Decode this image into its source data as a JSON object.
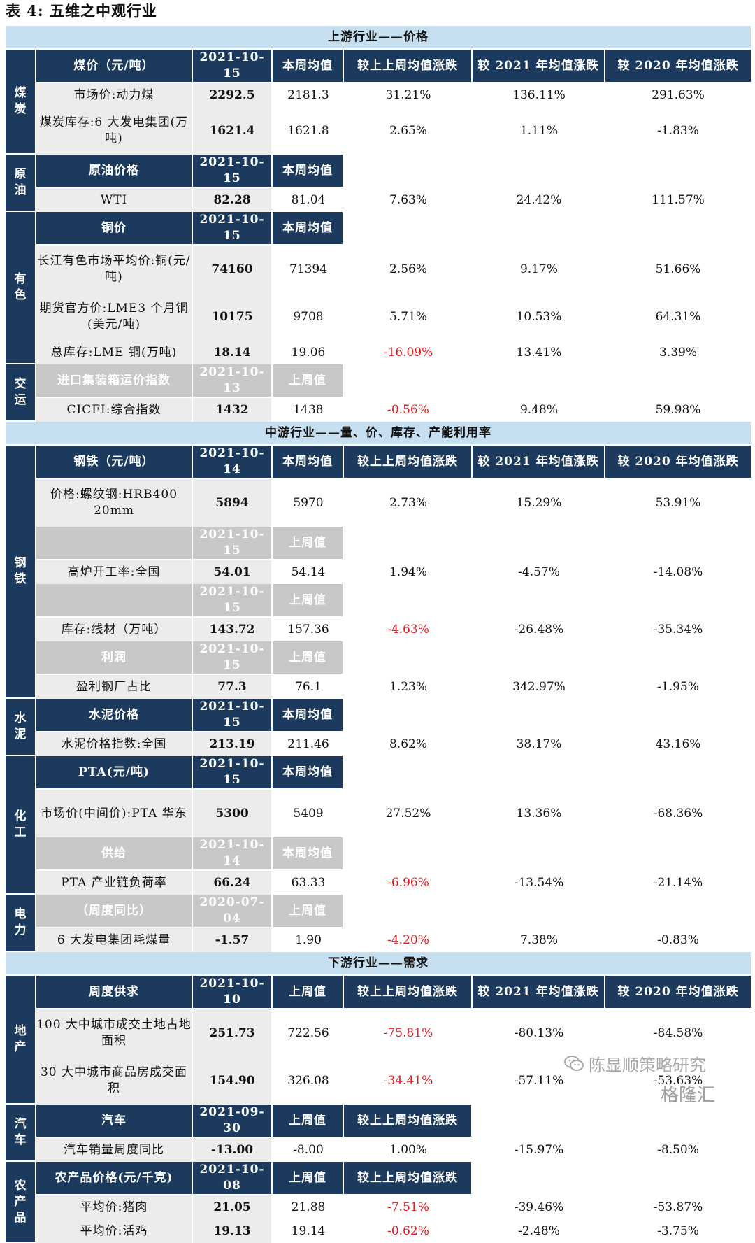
{
  "title": "表 4:  五维之中观行业",
  "upstream": {
    "header": "上游行业——价格",
    "coal": {
      "category": "煤炭",
      "headers": [
        "煤价（元/吨）",
        "2021-10-15",
        "本周均值",
        "较上上周均值涨跌",
        "较 2021 年均值涨跌",
        "较 2020 年均值涨跌"
      ],
      "rows": [
        {
          "label": "市场价:动力煤",
          "current": "2292.5",
          "avg": "2181.3",
          "wow": "31.21%",
          "vs2021": "136.11%",
          "vs2020": "291.63%"
        },
        {
          "label": "煤炭库存:6 大发电集团(万吨)",
          "current": "1621.4",
          "avg": "1621.8",
          "wow": "2.65%",
          "vs2021": "1.11%",
          "vs2020": "-1.83%"
        }
      ]
    },
    "oil": {
      "category": "原油",
      "headers": [
        "原油价格",
        "2021-10-15",
        "本周均值"
      ],
      "rows": [
        {
          "label": "WTI",
          "current": "82.28",
          "avg": "81.04",
          "wow": "7.63%",
          "vs2021": "24.42%",
          "vs2020": "111.57%"
        }
      ]
    },
    "nonferrous": {
      "category": "有色",
      "headers": [
        "铜价",
        "2021-10-15",
        "本周均值"
      ],
      "rows": [
        {
          "label": "长江有色市场平均价:铜(元/吨)",
          "current": "74160",
          "avg": "71394",
          "wow": "2.56%",
          "vs2021": "9.17%",
          "vs2020": "51.66%"
        },
        {
          "label": "期货官方价:LME3 个月铜(美元/吨)",
          "current": "10175",
          "avg": "9708",
          "wow": "5.71%",
          "vs2021": "10.53%",
          "vs2020": "64.31%"
        },
        {
          "label": "总库存:LME 铜(万吨)",
          "current": "18.14",
          "avg": "19.06",
          "wow": "-16.09%",
          "vs2021": "13.41%",
          "vs2020": "3.39%"
        }
      ]
    },
    "shipping": {
      "category": "交运",
      "headers": [
        "进口集装箱运价指数",
        "2021-10-13",
        "上周值"
      ],
      "rows": [
        {
          "label": "CICFI:综合指数",
          "current": "1432",
          "avg": "1438",
          "wow": "-0.56%",
          "vs2021": "9.48%",
          "vs2020": "59.98%"
        }
      ]
    }
  },
  "midstream": {
    "header": "中游行业——量、价、库存、产能利用率",
    "steel": {
      "category": "钢铁",
      "headers": [
        "钢铁（元/吨）",
        "2021-10-14",
        "本周均值",
        "较上上周均值涨跌",
        "较 2021 年均值涨跌",
        "较 2020 年均值涨跌"
      ],
      "price_row": {
        "label": "价格:螺纹钢:HRB400 20mm",
        "current": "5894",
        "avg": "5970",
        "wow": "2.73%",
        "vs2021": "15.29%",
        "vs2020": "53.91%"
      },
      "blast_headers": [
        "",
        "2021-10-15",
        "上周值"
      ],
      "blast_row": {
        "label": "高炉开工率:全国",
        "current": "54.01",
        "avg": "54.14",
        "wow": "1.94%",
        "vs2021": "-4.57%",
        "vs2020": "-14.08%"
      },
      "stock_headers": [
        "",
        "2021-10-15",
        "上周值"
      ],
      "stock_row": {
        "label": "库存:线材（万吨）",
        "current": "143.72",
        "avg": "157.36",
        "wow": "-4.63%",
        "vs2021": "-26.48%",
        "vs2020": "-35.34%"
      },
      "profit_headers": [
        "利润",
        "2021-10-15",
        "上周值"
      ],
      "profit_row": {
        "label": "盈利钢厂占比",
        "current": "77.3",
        "avg": "76.1",
        "wow": "1.23%",
        "vs2021": "342.97%",
        "vs2020": "-1.95%"
      }
    },
    "cement": {
      "category": "水泥",
      "headers": [
        "水泥价格",
        "2021-10-15",
        "本周均值"
      ],
      "rows": [
        {
          "label": "水泥价格指数:全国",
          "current": "213.19",
          "avg": "211.46",
          "wow": "8.62%",
          "vs2021": "38.17%",
          "vs2020": "43.16%"
        }
      ]
    },
    "chemical": {
      "category": "化工",
      "headers": [
        "PTA(元/吨)",
        "2021-10-15",
        "本周均值"
      ],
      "price_row": {
        "label": "市场价(中间价):PTA 华东",
        "current": "5300",
        "avg": "5409",
        "wow": "27.52%",
        "vs2021": "13.36%",
        "vs2020": "-68.36%"
      },
      "supply_headers": [
        "供给",
        "2021-10-14",
        "本周均值"
      ],
      "supply_row": {
        "label": "PTA 产业链负荷率",
        "current": "66.24",
        "avg": "63.33",
        "wow": "-6.96%",
        "vs2021": "-13.54%",
        "vs2020": "-21.14%"
      }
    },
    "power": {
      "category": "电力",
      "headers": [
        "（周度同比）",
        "2020-07-04",
        "上周值"
      ],
      "rows": [
        {
          "label": "6 大发电集团耗煤量",
          "current": "-1.57",
          "avg": "1.90",
          "wow": "-4.20%",
          "vs2021": "7.38%",
          "vs2020": "-0.83%"
        }
      ]
    }
  },
  "downstream": {
    "header": "下游行业——需求",
    "realestate": {
      "category": "地产",
      "headers": [
        "周度供求",
        "2021-10-10",
        "上周值",
        "较上上周均值涨跌",
        "较 2021 年均值涨跌",
        "较 2020 年均值涨跌"
      ],
      "rows": [
        {
          "label": "100 大中城市成交土地占地面积",
          "current": "251.73",
          "avg": "722.56",
          "wow": "-75.81%",
          "vs2021": "-80.13%",
          "vs2020": "-84.58%"
        },
        {
          "label": "30 大中城市商品房成交面积",
          "current": "154.90",
          "avg": "326.08",
          "wow": "-34.41%",
          "vs2021": "-57.11%",
          "vs2020": "-53.63%"
        }
      ]
    },
    "auto": {
      "category": "汽车",
      "headers": [
        "汽车",
        "2021-09-30",
        "上周值",
        "较上上周均值涨跌"
      ],
      "rows": [
        {
          "label": "汽车销量周度同比",
          "current": "-13.00",
          "avg": "-8.00",
          "wow": "1.00%",
          "vs2021": "-15.97%",
          "vs2020": "-8.50%"
        }
      ]
    },
    "agri": {
      "category": "农产品",
      "headers": [
        "农产品价格(元/千克)",
        "2021-10-08",
        "上周值",
        "较上上周均值涨跌"
      ],
      "rows": [
        {
          "label": "平均价:猪肉",
          "current": "21.05",
          "avg": "21.88",
          "wow": "-7.51%",
          "vs2021": "-39.46%",
          "vs2020": "-53.87%"
        },
        {
          "label": "平均价:活鸡",
          "current": "19.13",
          "avg": "19.14",
          "wow": "-0.62%",
          "vs2021": "-2.48%",
          "vs2020": "-3.75%"
        }
      ]
    }
  },
  "watermark": {
    "line1": "陈显顺策略研究",
    "line2": "格隆汇"
  }
}
